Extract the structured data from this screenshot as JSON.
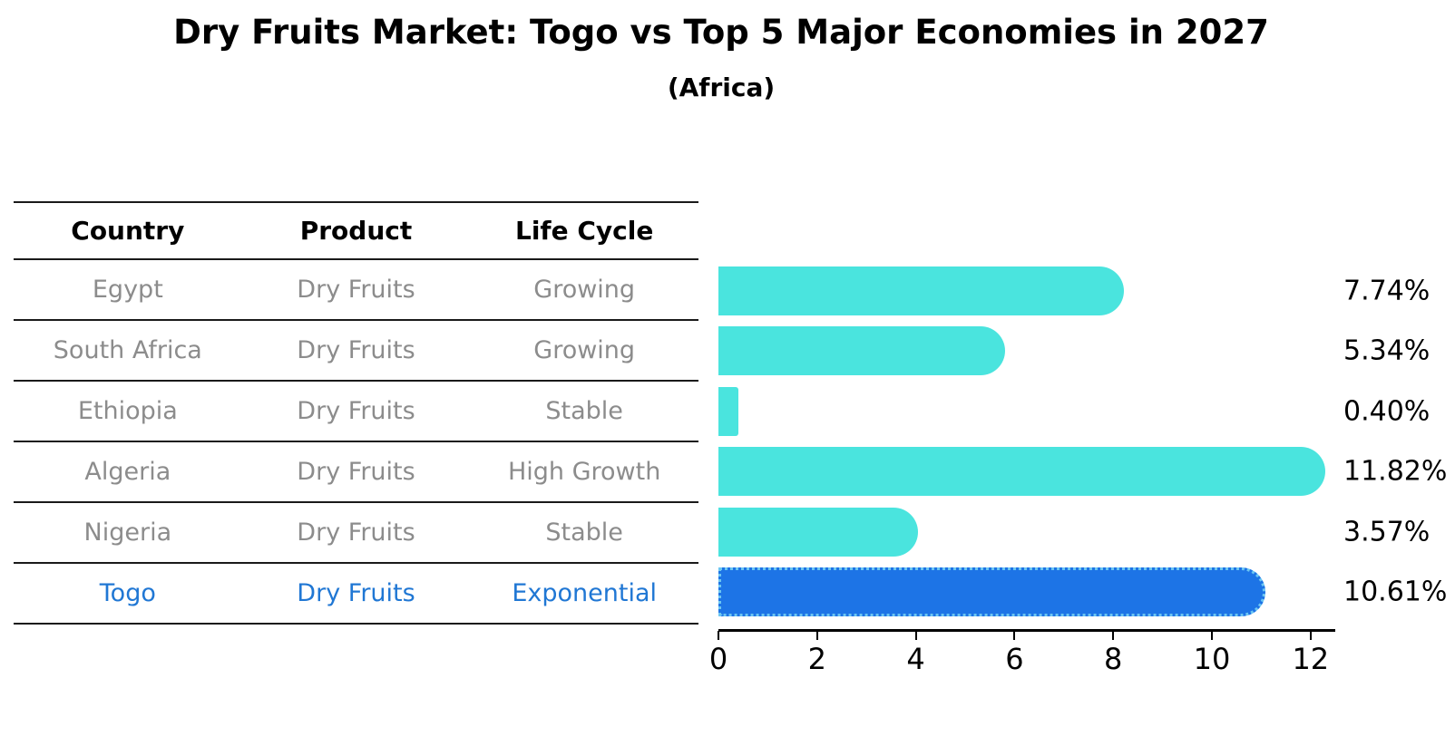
{
  "title": "Dry Fruits Market: Togo vs Top 5 Major Economies in 2027",
  "subtitle": "(Africa)",
  "table": {
    "headers": [
      "Country",
      "Product",
      "Life Cycle"
    ],
    "rows": [
      {
        "country": "Egypt",
        "product": "Dry Fruits",
        "life_cycle": "Growing",
        "highlight": false
      },
      {
        "country": "South Africa",
        "product": "Dry Fruits",
        "life_cycle": "Growing",
        "highlight": false
      },
      {
        "country": "Ethiopia",
        "product": "Dry Fruits",
        "life_cycle": "Stable",
        "highlight": false
      },
      {
        "country": "Algeria",
        "product": "Dry Fruits",
        "life_cycle": "High Growth",
        "highlight": false
      },
      {
        "country": "Nigeria",
        "product": "Dry Fruits",
        "life_cycle": "Stable",
        "highlight": false
      },
      {
        "country": "Togo",
        "product": "Dry Fruits",
        "life_cycle": "Exponential",
        "highlight": true
      }
    ]
  },
  "chart_data": {
    "type": "bar",
    "orientation": "horizontal",
    "title": "Dry Fruits Market: Togo vs Top 5 Major Economies in 2027",
    "subtitle": "(Africa)",
    "categories": [
      "Egypt",
      "South Africa",
      "Ethiopia",
      "Algeria",
      "Nigeria",
      "Togo"
    ],
    "values": [
      7.74,
      5.34,
      0.4,
      11.82,
      3.57,
      10.61
    ],
    "value_labels": [
      "7.74%",
      "5.34%",
      "0.40%",
      "11.82%",
      "3.57%",
      "10.61%"
    ],
    "xticks": [
      0,
      2,
      4,
      6,
      8,
      10,
      12
    ],
    "xlim": [
      0,
      12.5
    ],
    "grid": false,
    "legend": "none",
    "xlabel": "",
    "ylabel": "",
    "highlight_index": 5
  },
  "colors": {
    "bar_color": "#4AE4DE",
    "highlight_bar_color": "#1D74E6",
    "highlight_border_color": "#6CC6F2",
    "highlight_text_color": "#2077D4",
    "table_text_color": "#8C8C8C",
    "header_text_color": "#000000"
  }
}
